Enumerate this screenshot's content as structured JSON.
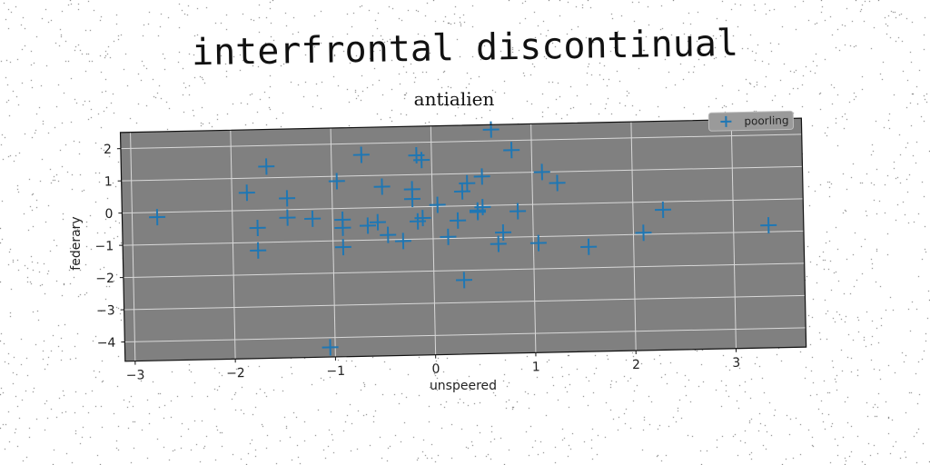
{
  "figure": {
    "suptitle": "interfrontal discontinual"
  },
  "colors": {
    "plot_background": "#808080",
    "grid": "#d8d8d8",
    "marker": "#1f77b4"
  },
  "chart_data": {
    "type": "scatter",
    "title": "antialien",
    "xlabel": "unspeered",
    "ylabel": "federary",
    "xlim": [
      -3.1,
      3.7
    ],
    "ylim": [
      -4.6,
      2.5
    ],
    "xticks": [
      -3,
      -2,
      -1,
      0,
      1,
      2,
      3
    ],
    "yticks": [
      2,
      1,
      0,
      -1,
      -2,
      -3,
      -4
    ],
    "xtick_labels": [
      "−3",
      "−2",
      "−1",
      "0",
      "1",
      "2",
      "3"
    ],
    "ytick_labels": [
      "2",
      "1",
      "0",
      "−1",
      "−2",
      "−3",
      "−4"
    ],
    "grid": true,
    "marker": "+",
    "legend_position": "top-right",
    "series": [
      {
        "name": "poorling",
        "points": [
          [
            -2.75,
            -0.15
          ],
          [
            -1.85,
            0.55
          ],
          [
            -1.65,
            1.35
          ],
          [
            -1.45,
            0.35
          ],
          [
            -1.75,
            -0.55
          ],
          [
            -1.75,
            -1.25
          ],
          [
            -1.45,
            -0.25
          ],
          [
            -1.2,
            -0.3
          ],
          [
            -0.95,
            0.85
          ],
          [
            -0.9,
            -0.35
          ],
          [
            -0.9,
            -0.6
          ],
          [
            -0.9,
            -1.2
          ],
          [
            -0.7,
            1.65
          ],
          [
            -0.65,
            -0.55
          ],
          [
            -0.55,
            -0.45
          ],
          [
            -0.5,
            0.65
          ],
          [
            -0.45,
            -0.85
          ],
          [
            -0.3,
            -1.05
          ],
          [
            -0.2,
            0.55
          ],
          [
            -0.2,
            0.25
          ],
          [
            -0.15,
            1.6
          ],
          [
            -0.1,
            1.45
          ],
          [
            -0.1,
            -0.35
          ],
          [
            -0.15,
            -0.45
          ],
          [
            0.05,
            0.05
          ],
          [
            0.15,
            -0.95
          ],
          [
            0.25,
            -0.45
          ],
          [
            0.3,
            0.45
          ],
          [
            0.35,
            0.7
          ],
          [
            0.45,
            -0.2
          ],
          [
            0.5,
            0.9
          ],
          [
            0.5,
            -0.05
          ],
          [
            0.6,
            2.35
          ],
          [
            0.65,
            -1.2
          ],
          [
            0.7,
            -0.85
          ],
          [
            0.8,
            1.7
          ],
          [
            0.85,
            -0.2
          ],
          [
            1.05,
            -1.2
          ],
          [
            1.1,
            1.0
          ],
          [
            1.25,
            0.65
          ],
          [
            1.55,
            -1.35
          ],
          [
            2.1,
            -0.95
          ],
          [
            2.3,
            -0.25
          ],
          [
            3.35,
            -0.8
          ],
          [
            0.3,
            -2.3
          ],
          [
            -1.05,
            -4.3
          ],
          [
            0.45,
            -0.15
          ]
        ]
      }
    ]
  }
}
